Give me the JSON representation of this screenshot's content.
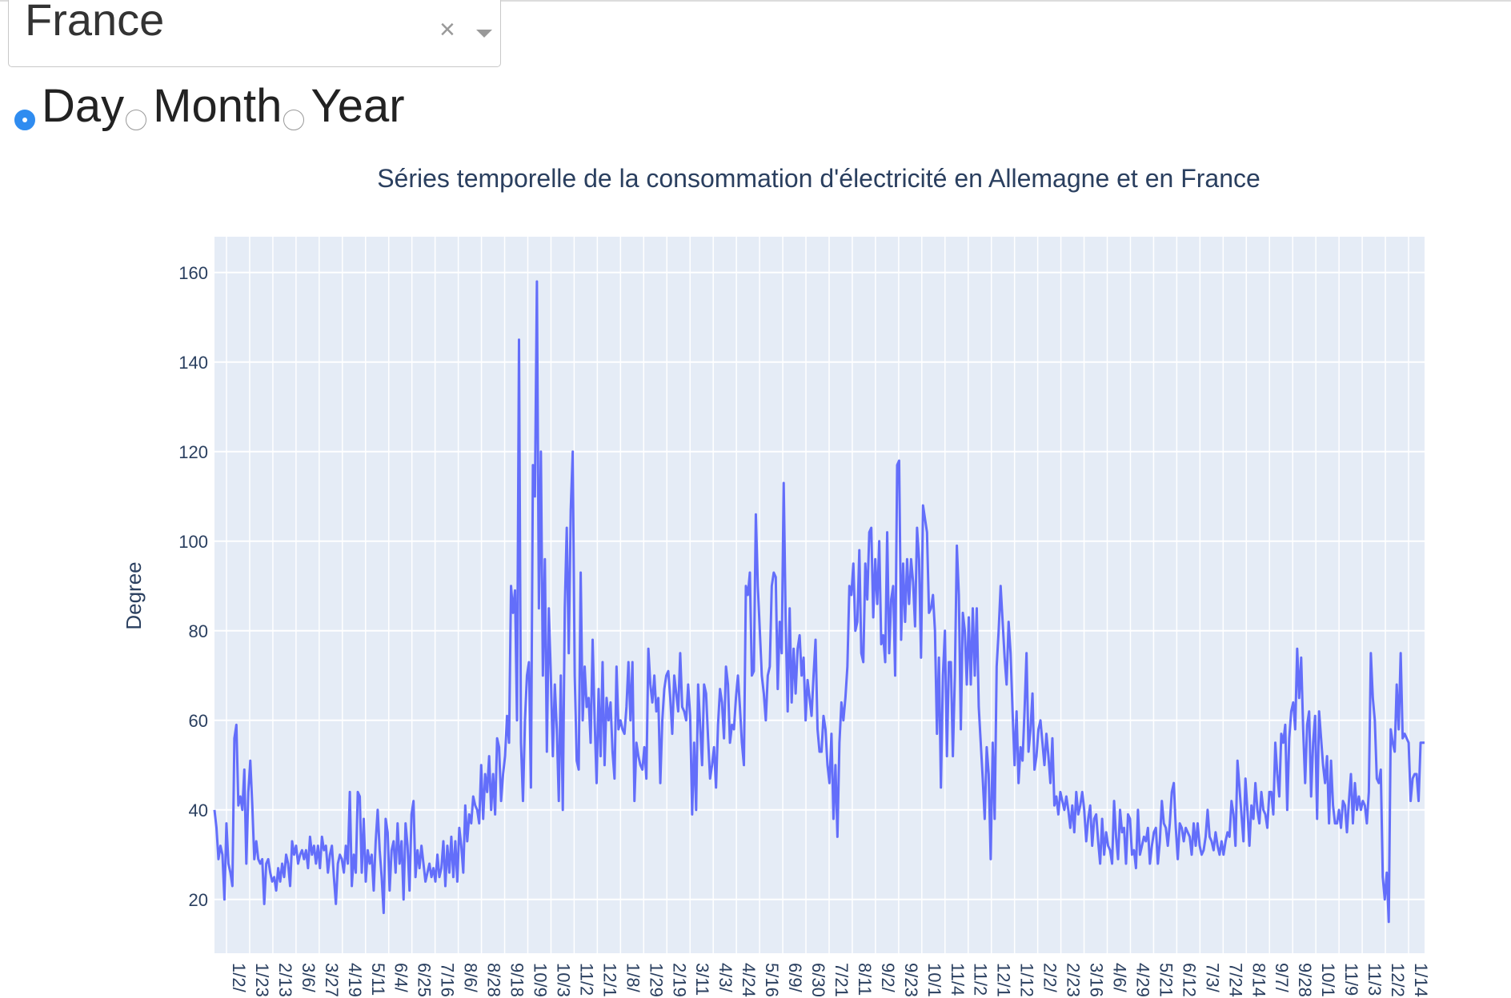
{
  "dropdown": {
    "value": "France",
    "clear_icon": "×",
    "arrow_icon": "chevron-down-icon"
  },
  "granularity": {
    "options": [
      {
        "label": "Day",
        "checked": true
      },
      {
        "label": "Month",
        "checked": false
      },
      {
        "label": "Year",
        "checked": false
      }
    ]
  },
  "chart_data": {
    "type": "line",
    "title": "Séries temporelle de la consommation d'électricité en Allemagne et en France",
    "xlabel": "",
    "ylabel": "Degree",
    "ylim": [
      8,
      168
    ],
    "yticks": [
      20,
      40,
      60,
      80,
      100,
      120,
      140,
      160
    ],
    "grid": true,
    "line_color": "#636efa",
    "plot_bg": "#e5ecf6",
    "xticks": [
      "1/2/",
      "1/23",
      "2/13",
      "3/6/",
      "3/27",
      "4/19",
      "5/11",
      "6/4/",
      "6/25",
      "7/16",
      "8/6/",
      "8/28",
      "9/18",
      "10/9",
      "10/3",
      "11/2",
      "12/1",
      "1/8/",
      "1/29",
      "2/19",
      "3/11",
      "4/3/",
      "4/24",
      "5/16",
      "6/9/",
      "6/30",
      "7/21",
      "8/11",
      "9/2/",
      "9/23",
      "10/1",
      "11/4",
      "11/2",
      "12/1",
      "1/12",
      "2/2/",
      "2/23",
      "3/16",
      "4/6/",
      "4/29",
      "5/21",
      "6/12",
      "7/3/",
      "7/24",
      "8/14",
      "9/7/",
      "9/28",
      "10/1",
      "11/9",
      "11/3",
      "12/2",
      "1/14"
    ],
    "series": [
      {
        "values": [
          40,
          36,
          29,
          32,
          30,
          20,
          37,
          28,
          26,
          23,
          56,
          59,
          41,
          43,
          40,
          49,
          28,
          44,
          51,
          41,
          29,
          33,
          29,
          28,
          29,
          19,
          28,
          29,
          26,
          24,
          25,
          22,
          27,
          24,
          28,
          25,
          30,
          28,
          23,
          33,
          30,
          32,
          28,
          30,
          31,
          29,
          31,
          27,
          34,
          30,
          32,
          28,
          32,
          27,
          34,
          31,
          32,
          26,
          30,
          32,
          25,
          19,
          28,
          30,
          29,
          26,
          32,
          28,
          44,
          23,
          30,
          26,
          44,
          43,
          26,
          38,
          24,
          31,
          28,
          30,
          22,
          33,
          40,
          31,
          25,
          17,
          38,
          35,
          22,
          31,
          33,
          26,
          37,
          28,
          33,
          20,
          37,
          32,
          22,
          39,
          42,
          25,
          31,
          27,
          32,
          28,
          24,
          26,
          28,
          25,
          27,
          24,
          30,
          25,
          27,
          33,
          23,
          32,
          26,
          34,
          25,
          33,
          24,
          36,
          32,
          26,
          41,
          33,
          39,
          37,
          43,
          41,
          40,
          37,
          50,
          38,
          48,
          44,
          52,
          40,
          48,
          39,
          56,
          54,
          42,
          48,
          52,
          61,
          55,
          90,
          84,
          89,
          60,
          145,
          55,
          42,
          60,
          70,
          73,
          45,
          117,
          110,
          158,
          85,
          120,
          70,
          96,
          53,
          85,
          70,
          52,
          68,
          58,
          42,
          70,
          40,
          85,
          103,
          75,
          107,
          120,
          70,
          51,
          49,
          93,
          60,
          72,
          63,
          65,
          55,
          78,
          60,
          46,
          67,
          52,
          73,
          50,
          65,
          60,
          64,
          53,
          47,
          72,
          58,
          60,
          58,
          57,
          63,
          73,
          60,
          73,
          42,
          55,
          52,
          50,
          49,
          54,
          47,
          76,
          68,
          64,
          70,
          62,
          65,
          46,
          60,
          67,
          70,
          71,
          65,
          57,
          70,
          66,
          62,
          75,
          63,
          62,
          60,
          68,
          61,
          39,
          55,
          40,
          68,
          59,
          50,
          68,
          66,
          56,
          47,
          50,
          54,
          45,
          59,
          67,
          64,
          56,
          72,
          68,
          55,
          59,
          58,
          65,
          70,
          63,
          55,
          50,
          90,
          88,
          93,
          70,
          71,
          106,
          90,
          80,
          70,
          66,
          60,
          70,
          72,
          90,
          93,
          92,
          67,
          82,
          75,
          113,
          82,
          62,
          85,
          64,
          76,
          66,
          76,
          79,
          70,
          74,
          60,
          69,
          65,
          61,
          70,
          78,
          58,
          53,
          53,
          61,
          58,
          50,
          46,
          57,
          38,
          50,
          34,
          55,
          64,
          60,
          65,
          72,
          90,
          88,
          95,
          80,
          82,
          98,
          75,
          73,
          95,
          87,
          102,
          103,
          83,
          96,
          86,
          100,
          77,
          79,
          73,
          102,
          75,
          87,
          90,
          70,
          117,
          118,
          78,
          95,
          82,
          96,
          86,
          96,
          91,
          81,
          103,
          96,
          74,
          108,
          105,
          102,
          84,
          85,
          88,
          80,
          57,
          74,
          45,
          70,
          80,
          52,
          73,
          73,
          52,
          70,
          99,
          88,
          58,
          84,
          80,
          68,
          83,
          68,
          85,
          70,
          85,
          63,
          55,
          47,
          38,
          54,
          48,
          29,
          55,
          38,
          72,
          80,
          90,
          82,
          74,
          68,
          82,
          75,
          62,
          50,
          62,
          46,
          54,
          51,
          62,
          75,
          53,
          58,
          66,
          49,
          52,
          58,
          60,
          55,
          50,
          57,
          52,
          46,
          56,
          41,
          43,
          39,
          44,
          42,
          40,
          43,
          40,
          36,
          41,
          35,
          44,
          39,
          41,
          44,
          40,
          33,
          38,
          41,
          32,
          38,
          39,
          33,
          28,
          38,
          30,
          35,
          32,
          31,
          28,
          42,
          34,
          29,
          40,
          35,
          36,
          28,
          39,
          38,
          30,
          31,
          27,
          40,
          30,
          32,
          34,
          33,
          36,
          28,
          32,
          35,
          36,
          28,
          33,
          42,
          37,
          36,
          32,
          37,
          44,
          46,
          36,
          29,
          37,
          36,
          33,
          36,
          35,
          34,
          30,
          37,
          32,
          37,
          32,
          30,
          31,
          34,
          40,
          34,
          33,
          31,
          35,
          32,
          30,
          33,
          30,
          33,
          35,
          34,
          42,
          39,
          32,
          51,
          45,
          39,
          33,
          47,
          40,
          32,
          41,
          38,
          46,
          40,
          37,
          44,
          40,
          39,
          36,
          44,
          44,
          39,
          55,
          48,
          43,
          57,
          55,
          59,
          40,
          56,
          62,
          64,
          58,
          76,
          65,
          74,
          58,
          46,
          59,
          62,
          43,
          55,
          61,
          38,
          62,
          56,
          50,
          46,
          52,
          37,
          51,
          41,
          37,
          37,
          40,
          36,
          42,
          41,
          35,
          42,
          48,
          37,
          46,
          40,
          43,
          40,
          42,
          41,
          37,
          44,
          75,
          65,
          60,
          47,
          46,
          49,
          25,
          20,
          26,
          15,
          58,
          55,
          53,
          68,
          58,
          75,
          56,
          57,
          56,
          55,
          42,
          47,
          48,
          48,
          42,
          55,
          55,
          55
        ]
      }
    ]
  }
}
